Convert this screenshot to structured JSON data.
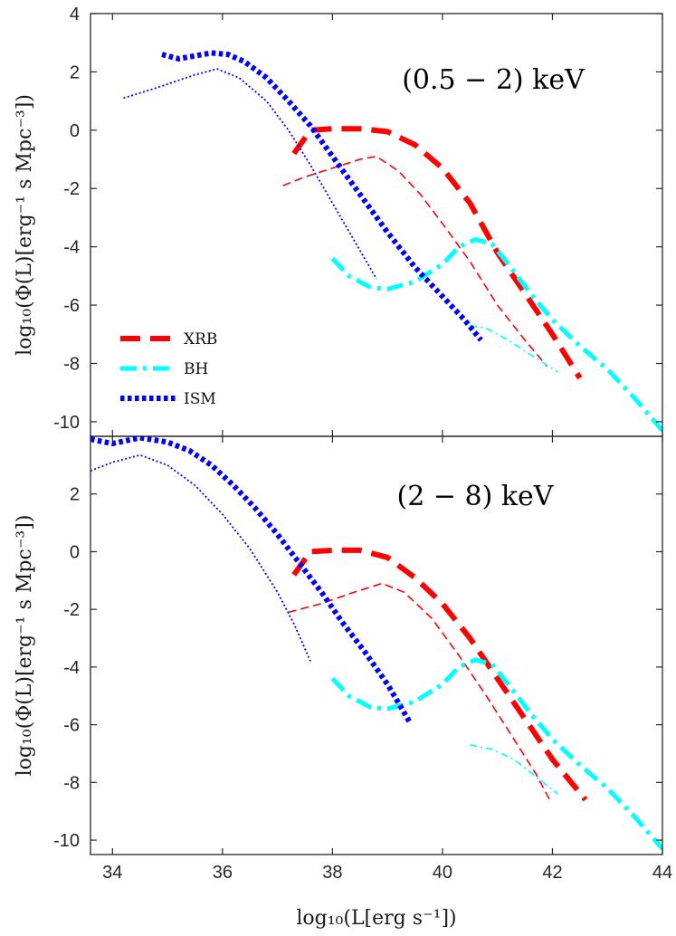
{
  "chart_data": [
    {
      "type": "line",
      "panel_label": "(0.5 − 2) keV",
      "ylabel": "log₁₀(Φ(L)[erg⁻¹ s Mpc⁻³])",
      "xlabel": "",
      "xlim": [
        33.6,
        44
      ],
      "ylim": [
        -10.5,
        4
      ],
      "xticks": [
        34,
        36,
        38,
        40,
        42,
        44
      ],
      "yticks": [
        -10,
        -8,
        -6,
        -4,
        -2,
        0,
        2,
        4
      ],
      "ytick_labels": [
        "-10",
        "-8",
        "-6",
        "-4",
        "-2",
        "0",
        "2",
        "4"
      ],
      "legend": [
        "XRB",
        "BH",
        "ISM"
      ],
      "series": [
        {
          "name": "XRB",
          "style": "thick-dash",
          "color": "#ff0000",
          "x": [
            37.3,
            37.6,
            38.0,
            38.5,
            39.0,
            39.5,
            40.0,
            40.5,
            41.0,
            41.5,
            42.0,
            42.5
          ],
          "y": [
            -0.8,
            0.0,
            0.05,
            0.05,
            -0.05,
            -0.5,
            -1.3,
            -2.5,
            -4.2,
            -5.6,
            -7.0,
            -8.5
          ]
        },
        {
          "name": "XRB-thin",
          "style": "thin-dash",
          "color": "#ff0000",
          "x": [
            37.1,
            37.5,
            38.0,
            38.5,
            38.8,
            39.2,
            39.6,
            40.0,
            40.5,
            41.0,
            41.5,
            41.9
          ],
          "y": [
            -1.9,
            -1.6,
            -1.3,
            -1.0,
            -0.9,
            -1.4,
            -2.2,
            -3.2,
            -4.5,
            -6.0,
            -7.2,
            -8.1
          ]
        },
        {
          "name": "BH",
          "style": "thick-dashdot",
          "color": "#00ffff",
          "x": [
            38.0,
            38.3,
            38.7,
            39.0,
            39.5,
            40.0,
            40.3,
            40.6,
            40.9,
            41.2,
            41.6,
            42.0,
            42.5,
            43.0,
            43.5,
            44.0
          ],
          "y": [
            -4.4,
            -5.0,
            -5.4,
            -5.45,
            -5.2,
            -4.6,
            -4.0,
            -3.75,
            -3.9,
            -4.6,
            -5.6,
            -6.5,
            -7.4,
            -8.2,
            -9.2,
            -10.3
          ]
        },
        {
          "name": "BH-thin",
          "style": "thin-dashdot",
          "color": "#00ffff",
          "x": [
            40.5,
            40.8,
            41.2,
            41.6,
            42.1
          ],
          "y": [
            -6.7,
            -6.8,
            -7.2,
            -7.7,
            -8.3
          ]
        },
        {
          "name": "ISM",
          "style": "thick-dot",
          "color": "#0000ff",
          "x": [
            34.9,
            35.2,
            35.5,
            35.8,
            36.1,
            36.4,
            36.8,
            37.2,
            37.6,
            38.0,
            38.5,
            39.0,
            39.5,
            40.0,
            40.4,
            40.7
          ],
          "y": [
            2.6,
            2.45,
            2.55,
            2.65,
            2.6,
            2.35,
            1.8,
            1.0,
            0.15,
            -0.9,
            -2.2,
            -3.5,
            -4.7,
            -5.7,
            -6.5,
            -7.2
          ]
        },
        {
          "name": "ISM-thin",
          "style": "thin-dot",
          "color": "#0000ff",
          "x": [
            34.2,
            34.8,
            35.5,
            35.9,
            36.3,
            36.8,
            37.2,
            37.6,
            38.0,
            38.4,
            38.8
          ],
          "y": [
            1.1,
            1.45,
            1.9,
            2.1,
            1.8,
            1.0,
            0.0,
            -1.2,
            -2.5,
            -3.8,
            -5.1
          ]
        }
      ]
    },
    {
      "type": "line",
      "panel_label": "(2 − 8) keV",
      "ylabel": "log₁₀(Φ(L)[erg⁻¹ s Mpc⁻³])",
      "xlabel": "log₁₀(L[erg s⁻¹])",
      "xlim": [
        33.6,
        44
      ],
      "ylim": [
        -10.5,
        4
      ],
      "xticks": [
        34,
        36,
        38,
        40,
        42,
        44
      ],
      "xtick_labels": [
        "34",
        "36",
        "38",
        "40",
        "42",
        "44"
      ],
      "yticks": [
        -10,
        -8,
        -6,
        -4,
        -2,
        0,
        2
      ],
      "ytick_labels": [
        "-10",
        "-8",
        "-6",
        "-4",
        "-2",
        "0",
        "2"
      ],
      "series": [
        {
          "name": "XRB",
          "style": "thick-dash",
          "color": "#ff0000",
          "x": [
            37.3,
            37.6,
            38.0,
            38.5,
            39.0,
            39.5,
            40.0,
            40.5,
            41.0,
            41.5,
            42.0,
            42.6
          ],
          "y": [
            -0.8,
            0.0,
            0.05,
            0.05,
            -0.2,
            -0.9,
            -1.8,
            -3.0,
            -4.4,
            -5.8,
            -7.2,
            -8.6
          ]
        },
        {
          "name": "XRB-thin",
          "style": "thin-dash",
          "color": "#ff0000",
          "x": [
            37.2,
            37.8,
            38.4,
            38.9,
            39.3,
            39.8,
            40.3,
            40.8,
            41.3,
            41.7,
            41.95
          ],
          "y": [
            -2.1,
            -1.8,
            -1.4,
            -1.1,
            -1.4,
            -2.3,
            -3.6,
            -5.0,
            -6.5,
            -7.7,
            -8.6
          ]
        },
        {
          "name": "BH",
          "style": "thick-dashdot",
          "color": "#00ffff",
          "x": [
            38.0,
            38.3,
            38.7,
            39.0,
            39.5,
            40.0,
            40.3,
            40.6,
            40.9,
            41.2,
            41.6,
            42.0,
            42.5,
            43.0,
            43.5,
            44.0
          ],
          "y": [
            -4.4,
            -5.0,
            -5.4,
            -5.45,
            -5.2,
            -4.6,
            -4.0,
            -3.75,
            -3.9,
            -4.6,
            -5.6,
            -6.5,
            -7.4,
            -8.2,
            -9.2,
            -10.3
          ]
        },
        {
          "name": "BH-thin",
          "style": "thin-dashdot",
          "color": "#00ffff",
          "x": [
            40.5,
            40.9,
            41.3,
            41.7,
            42.1
          ],
          "y": [
            -6.7,
            -6.85,
            -7.2,
            -7.8,
            -8.4
          ]
        },
        {
          "name": "ISM",
          "style": "thick-dot",
          "color": "#0000ff",
          "x": [
            33.6,
            34.0,
            34.5,
            35.0,
            35.4,
            35.8,
            36.2,
            36.6,
            37.0,
            37.4,
            37.8,
            38.2,
            38.6,
            39.0,
            39.4
          ],
          "y": [
            3.9,
            3.75,
            3.95,
            3.8,
            3.5,
            3.0,
            2.3,
            1.5,
            0.6,
            -0.4,
            -1.4,
            -2.5,
            -3.5,
            -4.6,
            -5.9
          ]
        },
        {
          "name": "ISM-thin",
          "style": "thin-dot",
          "color": "#0000ff",
          "x": [
            33.6,
            34.0,
            34.5,
            35.0,
            35.5,
            36.0,
            36.5,
            37.0,
            37.3,
            37.6
          ],
          "y": [
            2.8,
            3.1,
            3.35,
            3.0,
            2.3,
            1.3,
            0.1,
            -1.4,
            -2.5,
            -3.8
          ]
        }
      ]
    }
  ]
}
